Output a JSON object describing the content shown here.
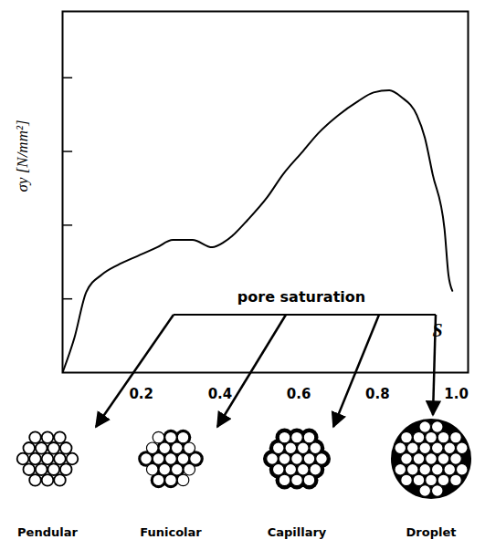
{
  "chart_data": {
    "type": "line",
    "y_label": "σy [N/mm²]",
    "x_label": "S",
    "x": [
      0,
      0.03,
      0.06,
      0.1,
      0.14,
      0.19,
      0.24,
      0.28,
      0.33,
      0.38,
      0.41,
      0.43,
      0.47,
      0.52,
      0.56,
      0.61,
      0.65,
      0.7,
      0.75,
      0.79,
      0.83,
      0.86,
      0.9,
      0.92,
      0.94,
      0.97,
      0.98,
      0.99
    ],
    "values": [
      0,
      0.47,
      1.09,
      1.33,
      1.46,
      1.58,
      1.7,
      1.8,
      1.8,
      1.7,
      1.77,
      1.85,
      2.07,
      2.38,
      2.69,
      3.0,
      3.25,
      3.49,
      3.68,
      3.8,
      3.83,
      3.74,
      3.49,
      3.19,
      2.69,
      1.95,
      1.33,
      1.11
    ],
    "xlim": [
      0,
      1.03
    ],
    "ylim": [
      0,
      4.9
    ],
    "xticks": [
      0.2,
      0.4,
      0.6,
      0.8,
      {
        "value": 1,
        "label": "1.0"
      }
    ],
    "yticks": [
      1,
      2,
      3,
      4
    ],
    "tick_labels": "x",
    "color": "#000000",
    "annotation": "pore saturation",
    "regimes": [
      "Pendular",
      "Funicolar",
      "Capillary",
      "Droplet"
    ]
  }
}
